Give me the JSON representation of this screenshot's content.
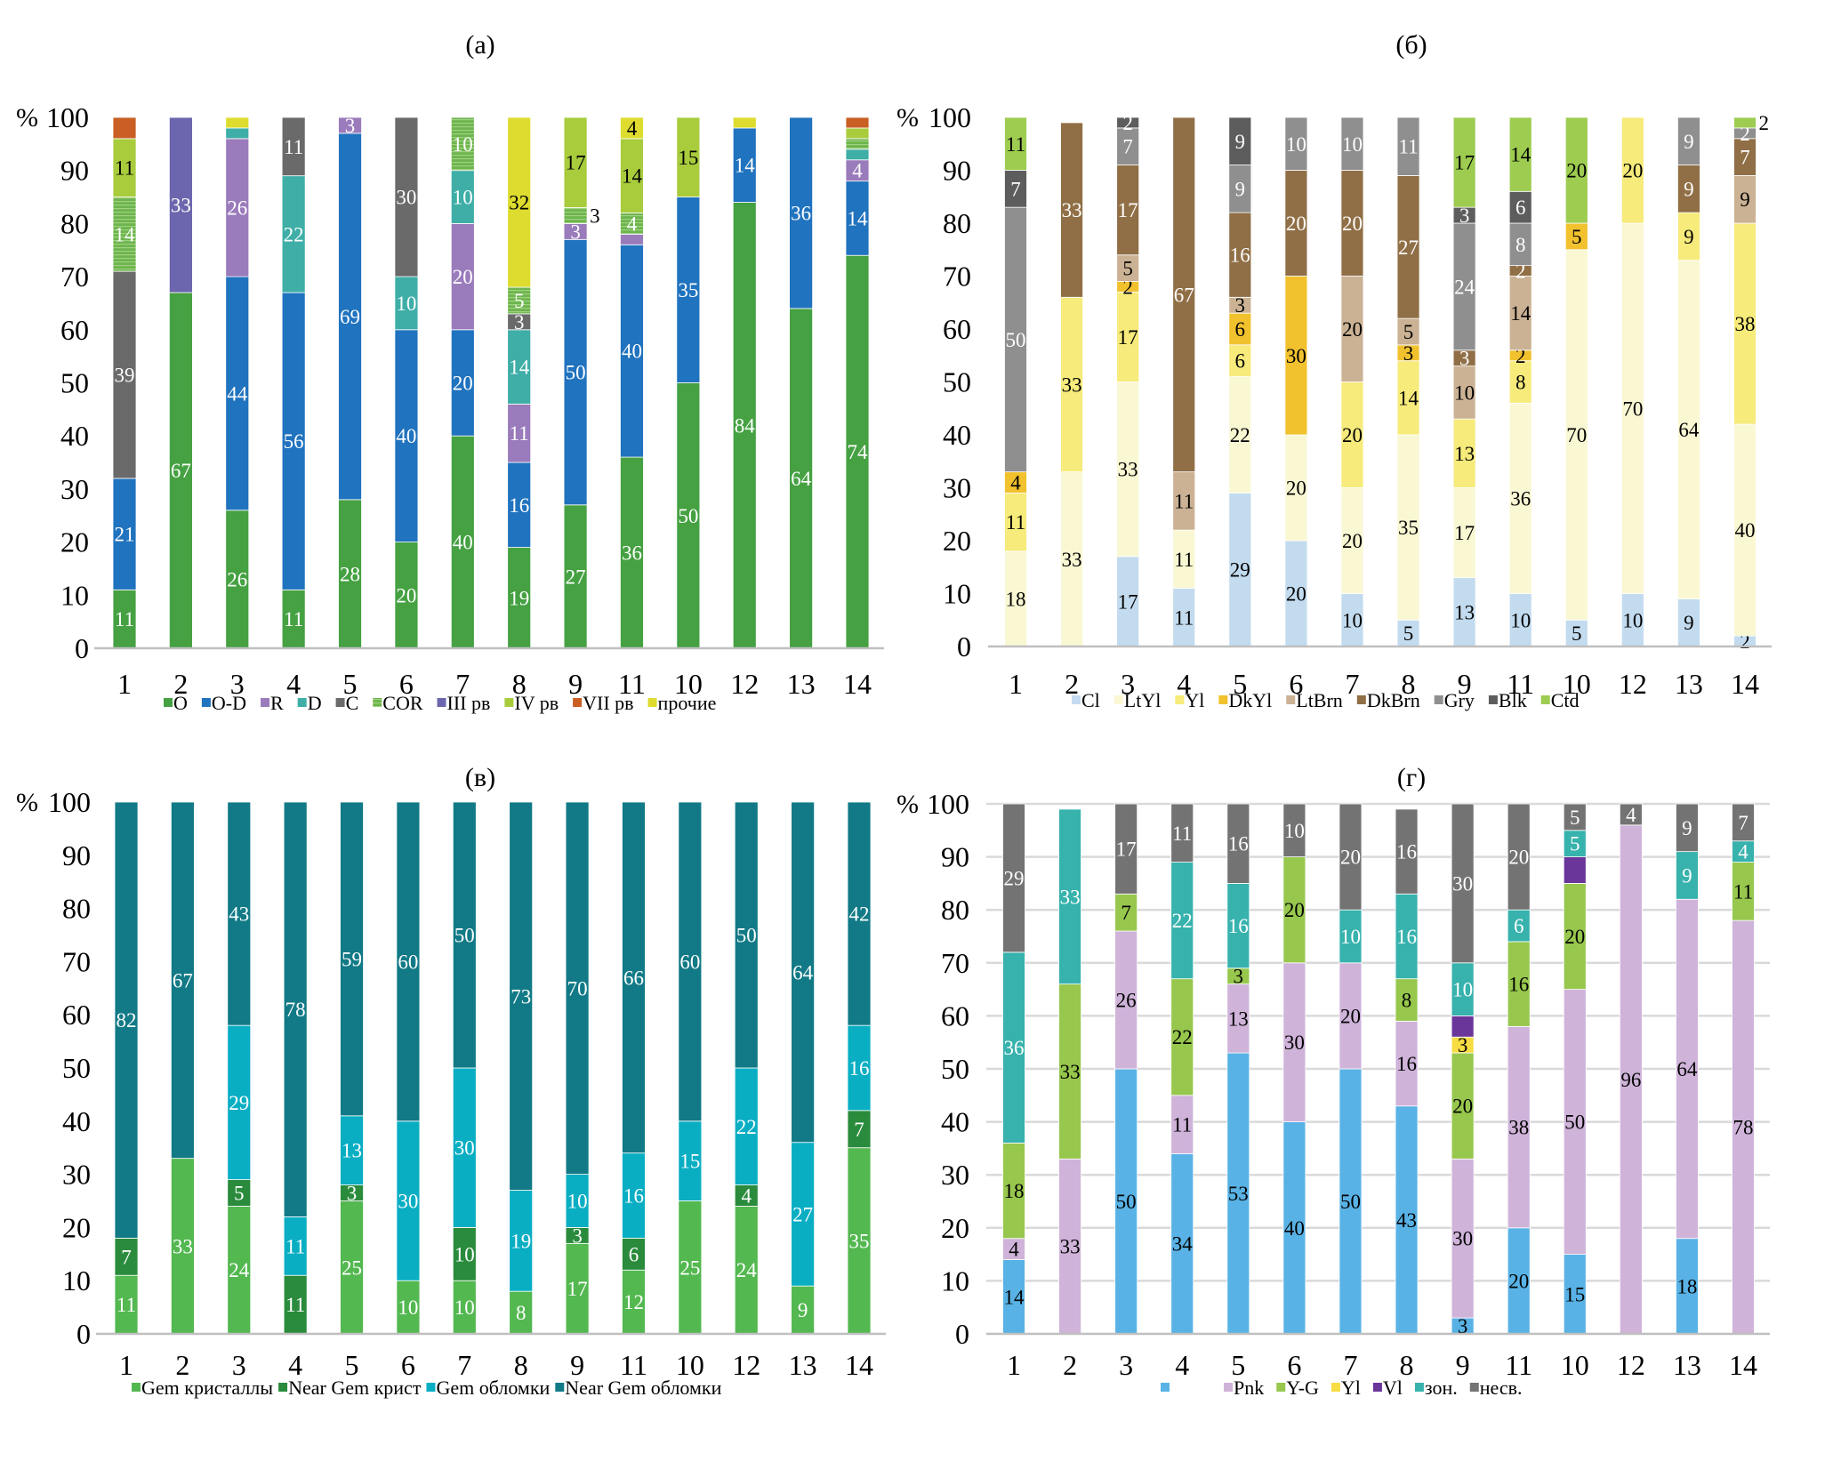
{
  "chart_data": [
    {
      "type": "bar",
      "stacked": true,
      "title": "(а)",
      "ylabel": "%",
      "ylim": [
        0,
        100
      ],
      "yticks": [
        "0",
        "10",
        "20",
        "30",
        "40",
        "50",
        "60",
        "70",
        "80",
        "90",
        "100"
      ],
      "grid": false,
      "legend": "bottom",
      "min_label": 3,
      "categories": [
        "1",
        "2",
        "3",
        "4",
        "5",
        "6",
        "7",
        "8",
        "9",
        "11",
        "10",
        "12",
        "13",
        "14"
      ],
      "series": [
        {
          "name": "O",
          "color": "#45a142",
          "label_color": "#ffffff",
          "values": [
            11,
            67,
            26,
            11,
            28,
            20,
            40,
            19,
            27,
            36,
            50,
            84,
            64,
            74
          ]
        },
        {
          "name": "O-D",
          "color": "#2073be",
          "label_color": "#ffffff",
          "values": [
            21,
            0,
            44,
            56,
            69,
            40,
            20,
            16,
            50,
            40,
            35,
            14,
            36,
            14
          ]
        },
        {
          "name": "R",
          "color": "#9a7bbb",
          "label_color": "#ffffff",
          "values": [
            0,
            0,
            26,
            0,
            3,
            0,
            20,
            11,
            3,
            2,
            0,
            0,
            0,
            4
          ]
        },
        {
          "name": "D",
          "color": "#3eaea7",
          "label_color": "#ffffff",
          "values": [
            0,
            0,
            2,
            22,
            0,
            10,
            10,
            14,
            0,
            0,
            0,
            0,
            0,
            2
          ]
        },
        {
          "name": "C",
          "color": "#6b6a6a",
          "label_color": "#ffffff",
          "values": [
            39,
            0,
            0,
            11,
            0,
            30,
            0,
            3,
            0,
            0,
            0,
            0,
            0,
            0
          ]
        },
        {
          "name": "COR",
          "color": "#6db54e",
          "label_color": "#ffffff",
          "striped": true,
          "values": [
            14,
            0,
            0,
            0,
            0,
            0,
            10,
            5,
            3,
            4,
            0,
            0,
            0,
            2
          ]
        },
        {
          "name": "III рв",
          "color": "#6b66ad",
          "label_color": "#ffffff",
          "values": [
            0,
            33,
            0,
            0,
            0,
            0,
            0,
            0,
            0,
            0,
            0,
            0,
            0,
            0
          ]
        },
        {
          "name": "IV рв",
          "color": "#a8cc3c",
          "label_color": "#000000",
          "values": [
            11,
            0,
            0,
            0,
            0,
            0,
            0,
            0,
            17,
            14,
            15,
            0,
            0,
            2
          ]
        },
        {
          "name": "VII рв",
          "color": "#c95f24",
          "label_color": "#ffffff",
          "show_labels": false,
          "values": [
            4,
            0,
            0,
            0,
            0,
            0,
            0,
            0,
            0,
            0,
            0,
            0,
            0,
            2
          ]
        },
        {
          "name": "прочие",
          "color": "#dddc2f",
          "label_color": "#000000",
          "values": [
            0,
            0,
            2,
            0,
            0,
            0,
            0,
            32,
            0,
            4,
            0,
            2,
            0,
            0
          ]
        }
      ]
    },
    {
      "type": "bar",
      "stacked": true,
      "title": "(б)",
      "ylabel": "%",
      "ylim": [
        0,
        100
      ],
      "yticks": [
        "0",
        "10",
        "20",
        "30",
        "40",
        "50",
        "60",
        "70",
        "80",
        "90",
        "100"
      ],
      "grid": false,
      "legend": "bottom",
      "min_label": 2,
      "categories": [
        "1",
        "2",
        "3",
        "4",
        "5",
        "6",
        "7",
        "8",
        "9",
        "11",
        "10",
        "12",
        "13",
        "14"
      ],
      "series": [
        {
          "name": "Cl",
          "color": "#c3dbee",
          "label_color": "#000000",
          "values": [
            0,
            0,
            17,
            11,
            29,
            20,
            10,
            5,
            13,
            10,
            5,
            10,
            9,
            2
          ]
        },
        {
          "name": "LtYl",
          "color": "#faf7d3",
          "label_color": "#000000",
          "values": [
            18,
            33,
            33,
            11,
            22,
            20,
            20,
            35,
            17,
            36,
            70,
            70,
            64,
            40
          ]
        },
        {
          "name": "Yl",
          "color": "#f6eb7b",
          "label_color": "#000000",
          "values": [
            11,
            33,
            17,
            0,
            6,
            0,
            20,
            14,
            13,
            8,
            0,
            20,
            9,
            38
          ]
        },
        {
          "name": "DkYl",
          "color": "#f1c12e",
          "label_color": "#000000",
          "values": [
            4,
            0,
            2,
            0,
            6,
            30,
            0,
            3,
            0,
            2,
            5,
            0,
            0,
            0
          ]
        },
        {
          "name": "LtBrn",
          "color": "#cbb294",
          "label_color": "#000000",
          "values": [
            0,
            0,
            5,
            11,
            3,
            0,
            20,
            5,
            10,
            14,
            0,
            0,
            0,
            9
          ]
        },
        {
          "name": "DkBrn",
          "color": "#906f46",
          "label_color": "#ffffff",
          "values": [
            0,
            33,
            17,
            67,
            16,
            20,
            20,
            27,
            3,
            2,
            0,
            0,
            9,
            7
          ]
        },
        {
          "name": "Gry",
          "color": "#8f8f90",
          "label_color": "#ffffff",
          "values": [
            50,
            0,
            7,
            0,
            9,
            10,
            10,
            11,
            24,
            8,
            0,
            0,
            9,
            2
          ]
        },
        {
          "name": "Blk",
          "color": "#5d5d5e",
          "label_color": "#ffffff",
          "values": [
            7,
            0,
            2,
            0,
            9,
            0,
            0,
            0,
            3,
            6,
            0,
            0,
            0,
            0
          ]
        },
        {
          "name": "Ctd",
          "color": "#9dcc50",
          "label_color": "#000000",
          "values": [
            11,
            0,
            0,
            0,
            0,
            0,
            0,
            0,
            17,
            14,
            20,
            0,
            0,
            2
          ]
        }
      ]
    },
    {
      "type": "bar",
      "stacked": true,
      "title": "(в)",
      "ylabel": "%",
      "ylim": [
        0,
        100
      ],
      "yticks": [
        "0",
        "10",
        "20",
        "30",
        "40",
        "50",
        "60",
        "70",
        "80",
        "90",
        "100"
      ],
      "grid": false,
      "legend": "bottom",
      "min_label": 3,
      "categories": [
        "1",
        "2",
        "3",
        "4",
        "5",
        "6",
        "7",
        "8",
        "9",
        "11",
        "10",
        "12",
        "13",
        "14"
      ],
      "series": [
        {
          "name": "Gem кристаллы",
          "color": "#53b850",
          "label_color": "#ffffff",
          "values": [
            11,
            33,
            24,
            0,
            25,
            10,
            10,
            8,
            17,
            12,
            25,
            24,
            9,
            35
          ]
        },
        {
          "name": "Near Gem крист",
          "color": "#2a8b3c",
          "label_color": "#ffffff",
          "values": [
            7,
            0,
            5,
            11,
            3,
            0,
            10,
            0,
            3,
            6,
            0,
            4,
            0,
            7
          ]
        },
        {
          "name": "Gem обломки",
          "color": "#09aec3",
          "label_color": "#ffffff",
          "values": [
            0,
            0,
            29,
            11,
            13,
            30,
            30,
            19,
            10,
            16,
            15,
            22,
            27,
            16
          ]
        },
        {
          "name": "Near Gem обломки",
          "color": "#117a86",
          "label_color": "#ffffff",
          "values": [
            82,
            67,
            43,
            78,
            59,
            60,
            50,
            73,
            70,
            66,
            60,
            50,
            64,
            42
          ]
        }
      ]
    },
    {
      "type": "bar",
      "stacked": true,
      "title": "(г)",
      "ylabel": "%",
      "ylim": [
        0,
        100
      ],
      "yticks": [
        "0",
        "10",
        "20",
        "30",
        "40",
        "50",
        "60",
        "70",
        "80",
        "90",
        "100"
      ],
      "grid": true,
      "legend": "bottom",
      "min_label": 3,
      "categories": [
        "1",
        "2",
        "3",
        "4",
        "5",
        "6",
        "7",
        "8",
        "9",
        "11",
        "10",
        "12",
        "13",
        "14"
      ],
      "series": [
        {
          "name": "",
          "color": "#59b2e5",
          "label_color": "#000000",
          "values": [
            14,
            0,
            50,
            34,
            53,
            40,
            50,
            43,
            3,
            20,
            15,
            0,
            18,
            0
          ]
        },
        {
          "name": "Pnk",
          "color": "#cfb3d9",
          "label_color": "#000000",
          "values": [
            4,
            33,
            26,
            11,
            13,
            30,
            20,
            16,
            30,
            38,
            50,
            96,
            64,
            78
          ]
        },
        {
          "name": "Y-G",
          "color": "#97c74d",
          "label_color": "#000000",
          "values": [
            18,
            33,
            7,
            22,
            3,
            20,
            0,
            8,
            20,
            16,
            20,
            0,
            0,
            11
          ]
        },
        {
          "name": "Yl",
          "color": "#f7dc44",
          "label_color": "#000000",
          "values": [
            0,
            0,
            0,
            0,
            0,
            0,
            0,
            0,
            3,
            0,
            0,
            0,
            0,
            0
          ]
        },
        {
          "name": "Vl",
          "color": "#6a369a",
          "label_color": "#ffffff",
          "show_labels": false,
          "values": [
            0,
            0,
            0,
            0,
            0,
            0,
            0,
            0,
            4,
            0,
            5,
            0,
            0,
            0
          ]
        },
        {
          "name": "зон.",
          "color": "#37b2ad",
          "label_color": "#ffffff",
          "values": [
            36,
            33,
            0,
            22,
            16,
            0,
            10,
            16,
            10,
            6,
            5,
            0,
            9,
            4
          ]
        },
        {
          "name": "несв.",
          "color": "#737374",
          "label_color": "#ffffff",
          "values": [
            29,
            0,
            17,
            11,
            16,
            10,
            20,
            16,
            30,
            20,
            5,
            4,
            9,
            7
          ]
        }
      ]
    }
  ]
}
